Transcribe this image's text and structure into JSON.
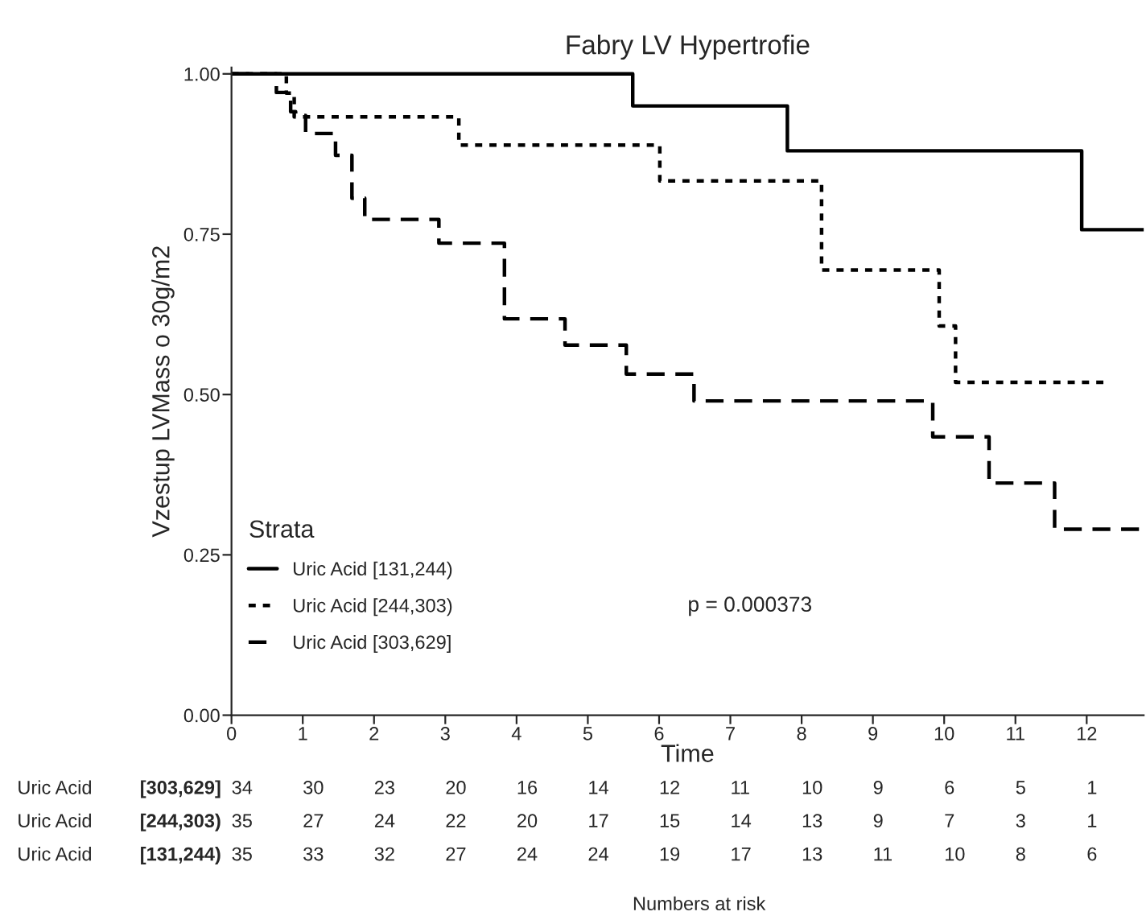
{
  "chart_data": {
    "type": "step",
    "title": "Fabry LV Hypertrofie",
    "xlabel": "Time",
    "ylabel": "Vzestup LVMass o 30g/m2",
    "legend_title": "Strata",
    "legend": "bottom left",
    "grid": false,
    "xlim": [
      0,
      12.8
    ],
    "xticks": [
      0,
      1,
      2,
      3,
      4,
      5,
      6,
      7,
      8,
      9,
      10,
      11,
      12
    ],
    "ylim": [
      0,
      1.01
    ],
    "yticks": [
      {
        "value": 0,
        "label": "0.00"
      },
      {
        "value": 0.25,
        "label": "0.25"
      },
      {
        "value": 0.5,
        "label": "0.50"
      },
      {
        "value": 0.75,
        "label": "0.75"
      },
      {
        "value": 1.0,
        "label": "1.00"
      }
    ],
    "series": [
      {
        "name": "Uric Acid [131,244)",
        "color": "#000000",
        "line_style": "solid",
        "x": [
          0,
          5.63,
          7.8,
          11.93,
          12.8
        ],
        "values": [
          1,
          0.95,
          0.88,
          0.757,
          0.757
        ]
      },
      {
        "name": "Uric Acid [244,303)",
        "color": "#000000",
        "line_style": "dotted",
        "x": [
          0,
          0.77,
          0.88,
          3.19,
          6.01,
          8.28,
          9.93,
          10.16,
          12.25
        ],
        "values": [
          1,
          0.97,
          0.933,
          0.889,
          0.833,
          0.694,
          0.607,
          0.519,
          0.519
        ]
      },
      {
        "name": "Uric Acid [303,629]",
        "color": "#000000",
        "line_style": "dashed",
        "x": [
          0,
          0.63,
          0.83,
          0.9,
          1.04,
          1.46,
          1.69,
          1.87,
          2.91,
          3.83,
          4.68,
          5.54,
          6.49,
          9.84,
          10.63,
          11.55,
          12.8
        ],
        "values": [
          1,
          0.971,
          0.941,
          0.935,
          0.907,
          0.873,
          0.806,
          0.773,
          0.736,
          0.618,
          0.577,
          0.532,
          0.49,
          0.434,
          0.362,
          0.29,
          0.29
        ]
      }
    ],
    "annotations": [
      "p = 0.000373",
      "Uric Acid [303,629] 34 30 23 20 16 14 12 11 10 9 6 5 1",
      "Uric Acid [244,303) 35 27 24 22 20 17 15 14 13 9 7 3 1",
      "Uric Acid [131,244) 35 33 32 27 24 24 19 17 13 11 10 8 6",
      "Numbers at risk"
    ]
  }
}
